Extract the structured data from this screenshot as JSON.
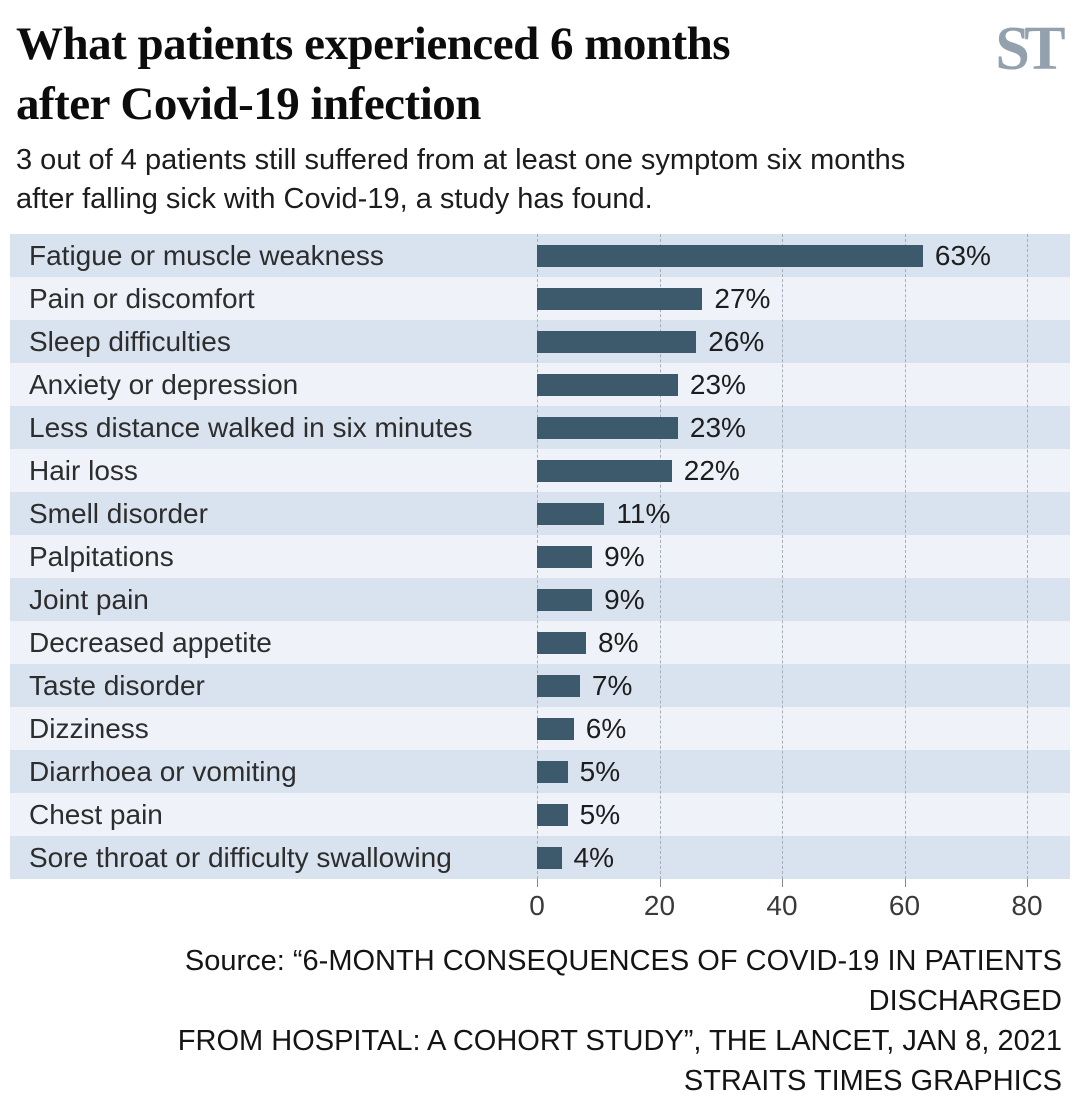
{
  "header": {
    "title_line1": "What patients experienced 6 months",
    "title_line2": "after Covid-19 infection",
    "logo": "ST",
    "subtitle_line1": "3 out of 4 patients still suffered from at least one symptom six months",
    "subtitle_line2": "after falling sick with Covid-19, a study has found."
  },
  "chart_data": {
    "type": "bar",
    "orientation": "horizontal",
    "title": "What patients experienced 6 months after Covid-19 infection",
    "subtitle": "3 out of 4 patients still suffered from at least one symptom six months after falling sick with Covid-19, a study has found.",
    "categories": [
      "Fatigue or muscle weakness",
      "Pain or discomfort",
      "Sleep difficulties",
      "Anxiety or depression",
      "Less distance walked in six minutes",
      "Hair loss",
      "Smell disorder",
      "Palpitations",
      "Joint pain",
      "Decreased appetite",
      "Taste disorder",
      "Dizziness",
      "Diarrhoea or vomiting",
      "Chest pain",
      "Sore throat or difficulty swallowing"
    ],
    "values": [
      63,
      27,
      26,
      23,
      23,
      22,
      11,
      9,
      9,
      8,
      7,
      6,
      5,
      5,
      4
    ],
    "value_labels": [
      "63%",
      "27%",
      "26%",
      "23%",
      "23%",
      "22%",
      "11%",
      "9%",
      "9%",
      "8%",
      "7%",
      "6%",
      "5%",
      "5%",
      "4%"
    ],
    "xlabel": "",
    "ylabel": "",
    "xlim": [
      0,
      80
    ],
    "x_ticks": [
      0,
      20,
      40,
      60,
      80
    ],
    "x_tick_labels": [
      "0",
      "20",
      "40",
      "60",
      "80"
    ],
    "grid": "vertical-dashed",
    "legend": "none",
    "bar_color": "#3c5a6b",
    "row_stripe_colors": [
      "#d9e3ef",
      "#eff3f9"
    ],
    "source": "Source: “6-MONTH CONSEQUENCES OF COVID-19 IN PATIENTS DISCHARGED FROM HOSPITAL: A COHORT STUDY”, THE LANCET, JAN 8, 2021 — STRAITS TIMES GRAPHICS"
  },
  "footer": {
    "source_line1": "Source: “6-MONTH CONSEQUENCES OF COVID-19 IN PATIENTS DISCHARGED",
    "source_line2": "FROM HOSPITAL: A COHORT STUDY”, THE LANCET, JAN 8, 2021",
    "source_line3": "STRAITS TIMES GRAPHICS"
  }
}
